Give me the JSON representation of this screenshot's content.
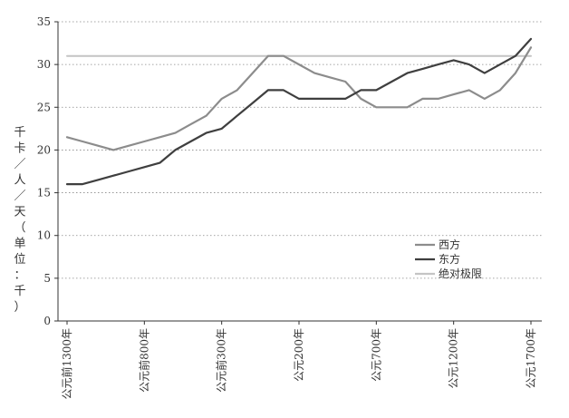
{
  "chart_data": {
    "type": "line",
    "title": "",
    "xlabel": "",
    "ylabel": "千卡／人／天（单位：千）",
    "ylim": [
      0,
      35
    ],
    "yticks": [
      0,
      5,
      10,
      15,
      20,
      25,
      30,
      35
    ],
    "grid": true,
    "legend_position": "bottom-right",
    "x": [
      -1300,
      -1200,
      -1100,
      -1000,
      -900,
      -800,
      -700,
      -600,
      -500,
      -400,
      -300,
      -200,
      -100,
      0,
      100,
      200,
      300,
      400,
      500,
      600,
      700,
      800,
      900,
      1000,
      1100,
      1200,
      1300,
      1400,
      1500,
      1600,
      1700
    ],
    "xtick_values": [
      -1300,
      -800,
      -300,
      200,
      700,
      1200,
      1700
    ],
    "xtick_labels": [
      "公元前1300年",
      "公元前800年",
      "公元前300年",
      "公元200年",
      "公元700年",
      "公元1200年",
      "公元1700年"
    ],
    "series": [
      {
        "name": "西方",
        "color": "#8c8c8c",
        "values": [
          21.5,
          21,
          20.5,
          20,
          20.5,
          21,
          21.5,
          22,
          23,
          24,
          26,
          27,
          29,
          31,
          31,
          30,
          29,
          28.5,
          28,
          26,
          25,
          25,
          25,
          26,
          26,
          26.5,
          27,
          26,
          27,
          29,
          32
        ]
      },
      {
        "name": "东方",
        "color": "#3f3f3f",
        "values": [
          16,
          16,
          16.5,
          17,
          17.5,
          18,
          18.5,
          20,
          21,
          22,
          22.5,
          24,
          25.5,
          27,
          27,
          26,
          26,
          26,
          26,
          27,
          27,
          28,
          29,
          29.5,
          30,
          30.5,
          30,
          29,
          30,
          31,
          33
        ]
      },
      {
        "name": "绝对极限",
        "color": "#c4c4c4",
        "values": [
          31,
          31,
          31,
          31,
          31,
          31,
          31,
          31,
          31,
          31,
          31,
          31,
          31,
          31,
          31,
          31,
          31,
          31,
          31,
          31,
          31,
          31,
          31,
          31,
          31,
          31,
          31,
          31,
          31,
          31,
          31
        ]
      }
    ]
  }
}
